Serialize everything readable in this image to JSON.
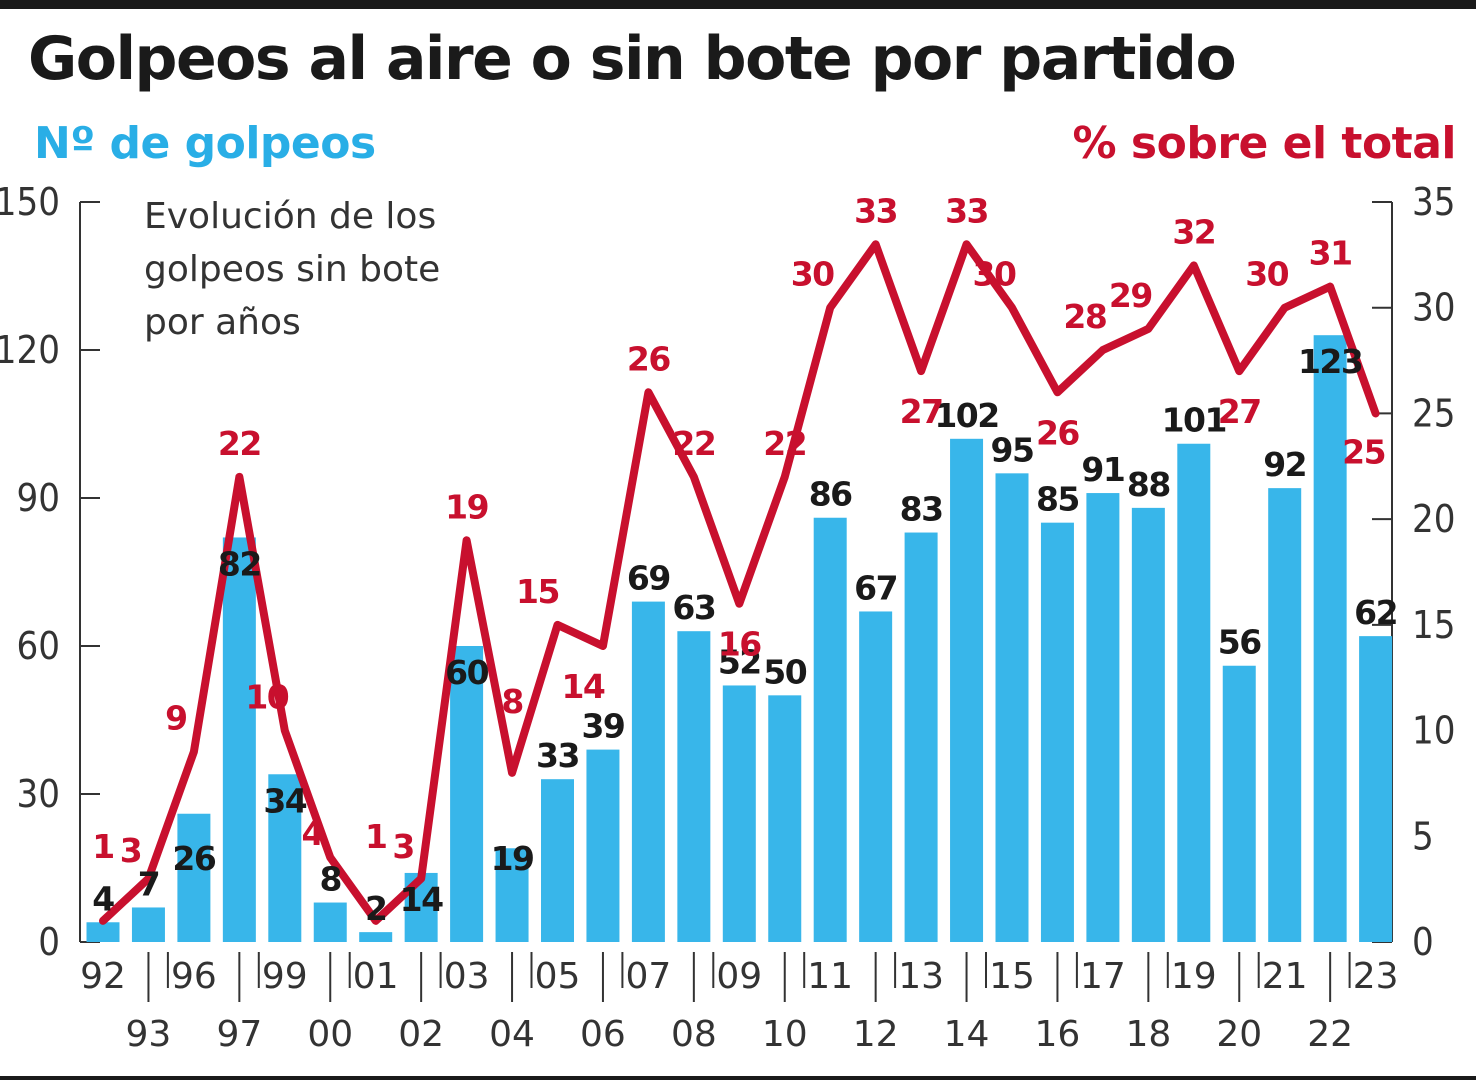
{
  "chart_data": {
    "type": "bar",
    "title": "Golpeos al aire o sin bote por partido",
    "annotation": "Evolución de los golpeos sin bote por años",
    "ylabel_left": "Nº de golpeos",
    "ylabel_right": "% sobre el total",
    "ylim_left": [
      0,
      150
    ],
    "ylim_right": [
      0,
      35
    ],
    "yticks_left": [
      0,
      30,
      60,
      90,
      120,
      150
    ],
    "yticks_right": [
      0,
      5,
      10,
      15,
      20,
      25,
      30,
      35
    ],
    "categories": [
      "92",
      "93",
      "96",
      "97",
      "99",
      "00",
      "01",
      "02",
      "03",
      "04",
      "05",
      "06",
      "07",
      "08",
      "09",
      "10",
      "11",
      "12",
      "13",
      "14",
      "15",
      "16",
      "17",
      "18",
      "19",
      "20",
      "21",
      "22",
      "23"
    ],
    "series": [
      {
        "name": "Nº de golpeos",
        "kind": "bar",
        "axis": "left",
        "color": "#38b6ea",
        "values": [
          4,
          7,
          26,
          82,
          34,
          8,
          2,
          14,
          60,
          19,
          33,
          39,
          69,
          63,
          52,
          50,
          86,
          67,
          83,
          102,
          95,
          85,
          91,
          88,
          101,
          56,
          92,
          123,
          62
        ]
      },
      {
        "name": "% sobre el total",
        "kind": "line",
        "axis": "right",
        "color": "#c8102e",
        "values": [
          1,
          3,
          9,
          22,
          10,
          4,
          1,
          3,
          19,
          8,
          15,
          14,
          26,
          22,
          16,
          22,
          30,
          33,
          27,
          33,
          30,
          26,
          28,
          29,
          32,
          27,
          30,
          31,
          25
        ]
      }
    ],
    "grid": false,
    "legend": "none"
  }
}
